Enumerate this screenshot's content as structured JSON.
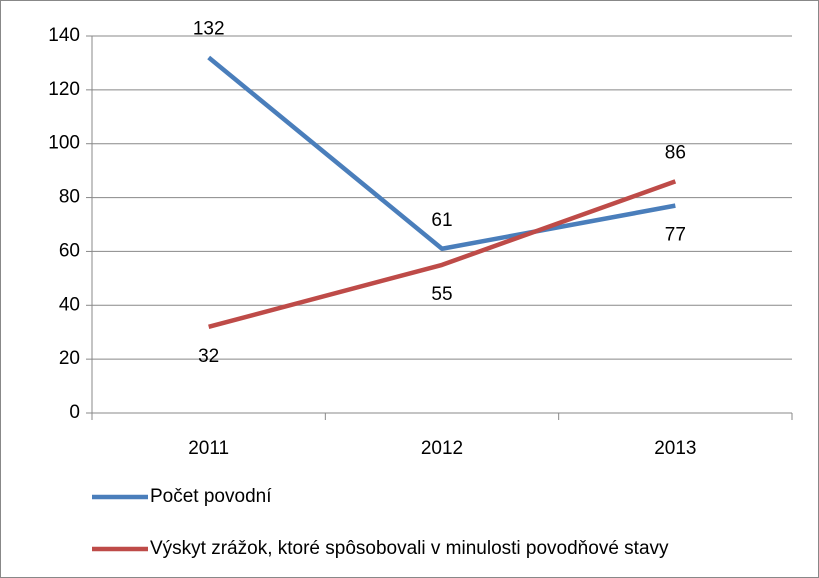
{
  "chart_data": {
    "type": "line",
    "categories": [
      "2011",
      "2012",
      "2013"
    ],
    "series": [
      {
        "name": "Počet povodní",
        "color": "#4a7ebb",
        "values": [
          132,
          61,
          77
        ]
      },
      {
        "name": "Výskyt zrážok, ktoré spôsobovali v minulosti povodňové stavy",
        "color": "#be4b48",
        "values": [
          32,
          55,
          86
        ]
      }
    ],
    "ylim": [
      0,
      140
    ],
    "yticks": [
      0,
      20,
      40,
      60,
      80,
      100,
      120,
      140
    ],
    "grid": true,
    "legend": "bottom"
  }
}
